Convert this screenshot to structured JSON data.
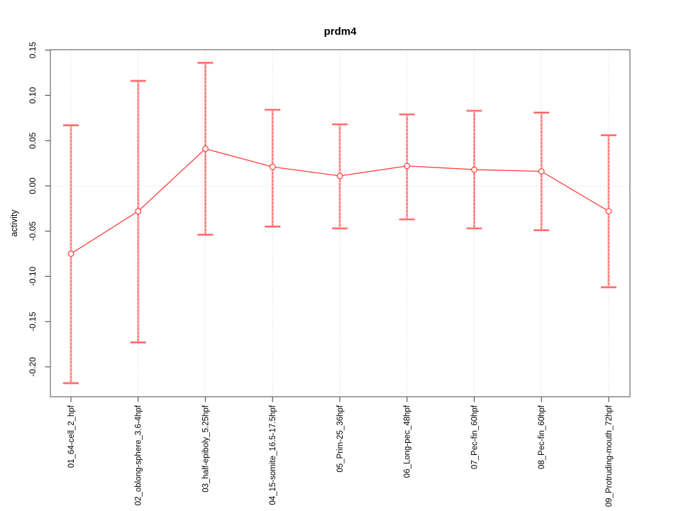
{
  "chart_data": {
    "type": "line",
    "title": "prdm4",
    "xlabel": "",
    "ylabel": "activity",
    "categories": [
      "01_64-cell_2_hpf",
      "02_oblong-sphere_3.6-4hpf",
      "03_half-epiboly_5.25hpf",
      "04_15-somite_16.5-17.5hpf",
      "05_Prim-25_36hpf",
      "06_Long-pec_48hpf",
      "07_Pec-fin_60hpf",
      "08_Pec-fin_60hpf",
      "09_Protruding-mouth_72hpf"
    ],
    "series": [
      {
        "name": "prdm4 activity",
        "values": [
          -0.075,
          -0.028,
          0.041,
          0.021,
          0.011,
          0.022,
          0.018,
          0.016,
          -0.028
        ],
        "error_low": [
          -0.218,
          -0.173,
          -0.054,
          -0.045,
          -0.047,
          -0.037,
          -0.047,
          -0.049,
          -0.112
        ],
        "error_high": [
          0.067,
          0.116,
          0.136,
          0.084,
          0.068,
          0.079,
          0.083,
          0.081,
          0.056
        ]
      }
    ],
    "ytick_labels": [
      "0.15",
      "0.10",
      "0.05",
      "0.00",
      "-0.05",
      "-0.10",
      "-0.15",
      "-0.20"
    ],
    "ytick_values": [
      0.15,
      0.1,
      0.05,
      0.0,
      -0.05,
      -0.1,
      -0.15,
      -0.2
    ],
    "ylim": [
      -0.233,
      0.1505
    ],
    "grid": true,
    "zero_line": true,
    "legend": "none",
    "marker": "open-circle",
    "colors": {
      "line": "#ff4040",
      "marker": "#ff3b3b",
      "marker_fill": "#ffffff",
      "error_band": "#ffabab",
      "error_dash": "#ff4a4a",
      "grid": "#d9d9d9",
      "box": "#909090",
      "tick": "#5a5a5a",
      "text": "#000000",
      "background": "#ffffff"
    }
  }
}
